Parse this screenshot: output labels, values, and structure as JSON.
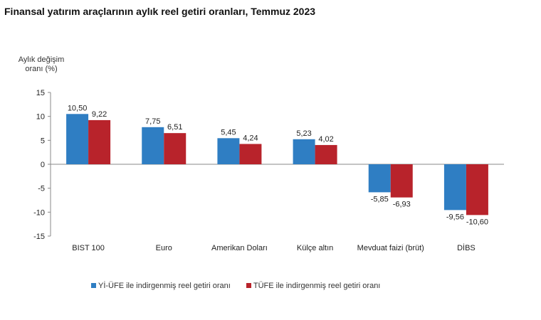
{
  "chart_data": {
    "type": "bar",
    "title": "Finansal yatırım araçlarının aylık reel getiri oranları, Temmuz 2023",
    "ylabel": "Aylık değişim oranı (%)",
    "ylabel_lines": [
      "Aylık değişim",
      "oranı (%)"
    ],
    "xlabel": "",
    "ylim": [
      -15,
      15
    ],
    "yticks": [
      15,
      10,
      5,
      0,
      -5,
      -10,
      -15
    ],
    "grid": false,
    "legend_position": "bottom",
    "categories": [
      "BIST 100",
      "Euro",
      "Amerikan Doları",
      "Külçe altın",
      "Mevduat faizi (brüt)",
      "DİBS"
    ],
    "series": [
      {
        "name": "Yİ-ÜFE ile indirgenmiş reel getiri oranı",
        "color": "#2f7ec3",
        "values": [
          10.5,
          7.75,
          5.45,
          5.23,
          -5.85,
          -9.56
        ],
        "labels": [
          "10,50",
          "7,75",
          "5,45",
          "5,23",
          "-5,85",
          "-9,56"
        ]
      },
      {
        "name": "TÜFE ile indirgenmiş reel getiri oranı",
        "color": "#b8232b",
        "values": [
          9.22,
          6.51,
          4.24,
          4.02,
          -6.93,
          -10.6
        ],
        "labels": [
          "9,22",
          "6,51",
          "4,24",
          "4,02",
          "-6,93",
          "-10,60"
        ]
      }
    ]
  }
}
